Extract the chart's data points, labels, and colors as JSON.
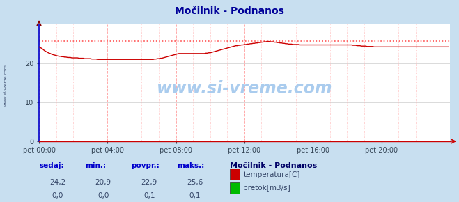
{
  "title": "Močilnik - Podnanos",
  "fig_bg_color": "#c8dff0",
  "plot_bg_color": "#ffffff",
  "grid_h_color": "#cccccc",
  "grid_v_color": "#ffaaaa",
  "x_min": 0,
  "x_max": 288,
  "y_min": 0,
  "y_max": 30,
  "y_ticks": [
    0,
    10,
    20
  ],
  "x_tick_labels": [
    "pet 00:00",
    "pet 04:00",
    "pet 08:00",
    "pet 12:00",
    "pet 16:00",
    "pet 20:00"
  ],
  "x_tick_positions": [
    0,
    48,
    96,
    144,
    192,
    240
  ],
  "temp_color": "#cc0000",
  "flow_color": "#00bb00",
  "max_line_color": "#ff5555",
  "spine_left_color": "#0000cc",
  "spine_bottom_color": "#cc0000",
  "watermark": "www.si-vreme.com",
  "legend_title": "Močilnik - Podnanos",
  "legend_items": [
    "temperatura[C]",
    "pretok[m3/s]"
  ],
  "legend_colors": [
    "#cc0000",
    "#00bb00"
  ],
  "stats_headers": [
    "sedaj:",
    "min.:",
    "povpr.:",
    "maks.:"
  ],
  "stats_temp": [
    "24,2",
    "20,9",
    "22,9",
    "25,6"
  ],
  "stats_flow": [
    "0,0",
    "0,0",
    "0,1",
    "0,1"
  ],
  "max_temp": 25.6,
  "temp_profile": [
    24.2,
    24.0,
    23.8,
    23.5,
    23.2,
    23.0,
    22.8,
    22.6,
    22.5,
    22.3,
    22.2,
    22.1,
    22.0,
    21.9,
    21.8,
    21.8,
    21.7,
    21.7,
    21.6,
    21.6,
    21.5,
    21.5,
    21.5,
    21.4,
    21.4,
    21.4,
    21.4,
    21.4,
    21.3,
    21.3,
    21.3,
    21.3,
    21.2,
    21.2,
    21.2,
    21.2,
    21.2,
    21.1,
    21.1,
    21.1,
    21.1,
    21.0,
    21.0,
    21.0,
    21.0,
    21.0,
    21.0,
    21.0,
    21.0,
    21.0,
    21.0,
    21.0,
    21.0,
    21.0,
    21.0,
    21.0,
    21.0,
    21.0,
    21.0,
    21.0,
    21.0,
    21.0,
    21.0,
    21.0,
    21.0,
    21.0,
    21.0,
    21.0,
    21.0,
    21.0,
    21.0,
    21.0,
    21.0,
    21.0,
    21.0,
    21.0,
    21.0,
    21.0,
    21.0,
    21.0,
    21.0,
    21.1,
    21.1,
    21.2,
    21.2,
    21.3,
    21.3,
    21.4,
    21.5,
    21.6,
    21.7,
    21.8,
    21.9,
    22.0,
    22.1,
    22.2,
    22.3,
    22.4,
    22.5,
    22.5,
    22.5,
    22.5,
    22.5,
    22.5,
    22.5,
    22.5,
    22.5,
    22.5,
    22.5,
    22.5,
    22.5,
    22.5,
    22.5,
    22.5,
    22.5,
    22.5,
    22.5,
    22.6,
    22.6,
    22.7,
    22.7,
    22.8,
    22.9,
    23.0,
    23.1,
    23.2,
    23.3,
    23.4,
    23.5,
    23.6,
    23.7,
    23.8,
    23.9,
    24.0,
    24.1,
    24.2,
    24.3,
    24.4,
    24.5,
    24.5,
    24.6,
    24.6,
    24.7,
    24.7,
    24.8,
    24.8,
    24.9,
    24.9,
    25.0,
    25.0,
    25.1,
    25.1,
    25.2,
    25.2,
    25.3,
    25.3,
    25.4,
    25.4,
    25.5,
    25.5,
    25.6,
    25.6,
    25.5,
    25.5,
    25.5,
    25.4,
    25.4,
    25.3,
    25.3,
    25.2,
    25.2,
    25.1,
    25.1,
    25.0,
    25.0,
    24.9,
    24.9,
    24.9,
    24.8,
    24.8,
    24.8,
    24.8,
    24.8,
    24.7,
    24.7,
    24.7,
    24.7,
    24.7,
    24.7,
    24.7,
    24.7,
    24.7,
    24.7,
    24.7,
    24.7,
    24.7,
    24.7,
    24.7,
    24.7,
    24.7,
    24.7,
    24.7,
    24.7,
    24.7,
    24.7,
    24.7,
    24.7,
    24.7,
    24.7,
    24.7,
    24.7,
    24.7,
    24.7,
    24.7,
    24.7,
    24.7,
    24.7,
    24.7,
    24.7,
    24.7,
    24.6,
    24.6,
    24.6,
    24.5,
    24.5,
    24.5,
    24.4,
    24.4,
    24.4,
    24.4,
    24.3,
    24.3,
    24.3,
    24.3,
    24.3,
    24.2,
    24.2,
    24.2,
    24.2,
    24.2,
    24.2,
    24.2,
    24.2,
    24.2,
    24.2,
    24.2,
    24.2,
    24.2,
    24.2,
    24.2,
    24.2,
    24.2,
    24.2,
    24.2,
    24.2,
    24.2,
    24.2,
    24.2,
    24.2,
    24.2,
    24.2,
    24.2,
    24.2,
    24.2,
    24.2,
    24.2,
    24.2,
    24.2,
    24.2,
    24.2,
    24.2,
    24.2,
    24.2,
    24.2,
    24.2,
    24.2,
    24.2,
    24.2,
    24.2,
    24.2,
    24.2,
    24.2,
    24.2,
    24.2,
    24.2,
    24.2,
    24.2,
    24.2
  ]
}
